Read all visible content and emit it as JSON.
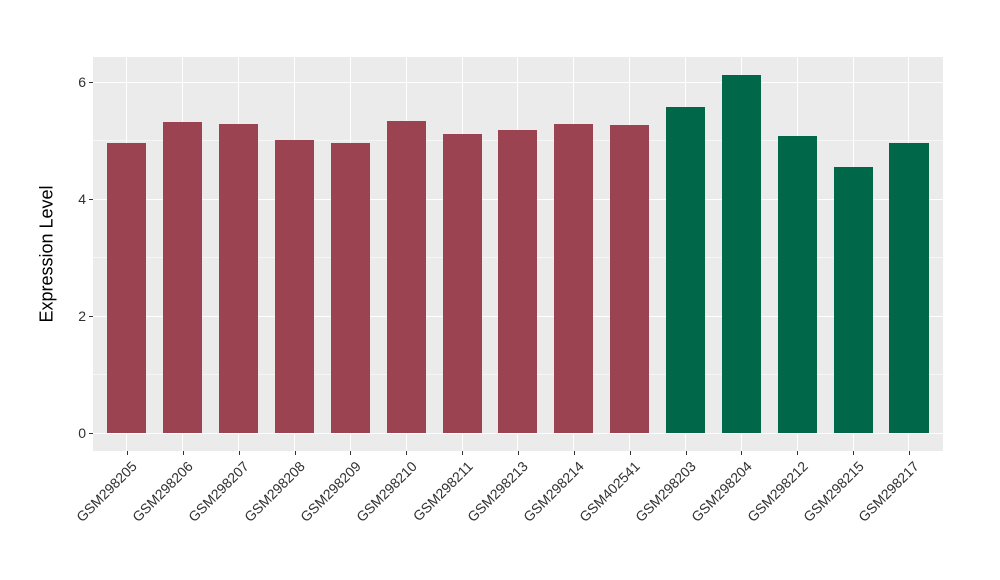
{
  "chart_data": {
    "type": "bar",
    "title": "",
    "xlabel": "",
    "ylabel": "Expression Level",
    "categories": [
      "GSM298205",
      "GSM298206",
      "GSM298207",
      "GSM298208",
      "GSM298209",
      "GSM298210",
      "GSM298211",
      "GSM298213",
      "GSM298214",
      "GSM402541",
      "GSM298203",
      "GSM298204",
      "GSM298212",
      "GSM298215",
      "GSM298217"
    ],
    "values": [
      4.95,
      5.31,
      5.28,
      5.0,
      4.96,
      5.33,
      5.11,
      5.17,
      5.28,
      5.26,
      5.56,
      6.11,
      5.07,
      4.54,
      4.95
    ],
    "bar_colors": [
      "#9C4351",
      "#9C4351",
      "#9C4351",
      "#9C4351",
      "#9C4351",
      "#9C4351",
      "#9C4351",
      "#9C4351",
      "#9C4351",
      "#9C4351",
      "#006849",
      "#006849",
      "#006849",
      "#006849",
      "#006849"
    ],
    "group_colors": {
      "group1_red": "#9C4351",
      "group2_green": "#006849"
    },
    "y_ticks": [
      0,
      2,
      4,
      6
    ],
    "y_tick_labels": [
      "0",
      "2",
      "4",
      "6"
    ],
    "y_minor_ticks": [
      1,
      3,
      5
    ],
    "ylim": [
      -0.31,
      6.42
    ],
    "grid": "on",
    "legend_position": "none",
    "panel_background": "#EBEBEB",
    "gridline_color": "#FFFFFF"
  }
}
